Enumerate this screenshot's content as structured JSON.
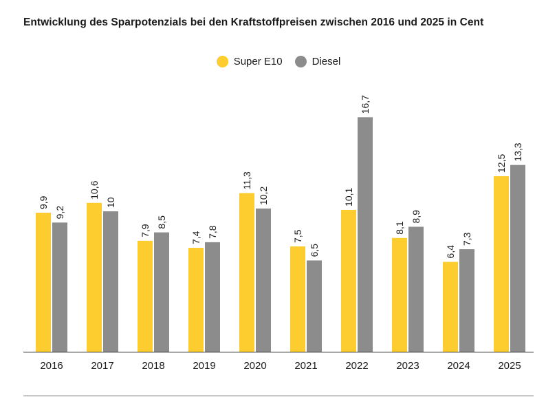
{
  "title": "Entwicklung des Sparpotenzials bei den Kraftstoffpreisen zwischen 2016 und 2025 in Cent",
  "legend": [
    {
      "label": "Super E10",
      "color": "#fdcd2f"
    },
    {
      "label": "Diesel",
      "color": "#8c8c8c"
    }
  ],
  "chart_data": {
    "type": "bar",
    "title": "Entwicklung des Sparpotenzials bei den Kraftstoffpreisen zwischen 2016 und 2025 in Cent",
    "xlabel": "",
    "ylabel": "",
    "categories": [
      "2016",
      "2017",
      "2018",
      "2019",
      "2020",
      "2021",
      "2022",
      "2023",
      "2024",
      "2025"
    ],
    "series": [
      {
        "name": "Super E10",
        "color": "#fdcd2f",
        "values": [
          9.9,
          10.6,
          7.9,
          7.4,
          11.3,
          7.5,
          10.1,
          8.1,
          6.4,
          12.5
        ],
        "labels": [
          "9,9",
          "10,6",
          "7,9",
          "7,4",
          "11,3",
          "7,5",
          "10,1",
          "8,1",
          "6,4",
          "12,5"
        ]
      },
      {
        "name": "Diesel",
        "color": "#8c8c8c",
        "values": [
          9.2,
          10,
          8.5,
          7.8,
          10.2,
          6.5,
          16.7,
          8.9,
          7.3,
          13.3
        ],
        "labels": [
          "9,2",
          "10",
          "8,5",
          "7,8",
          "10,2",
          "6,5",
          "16,7",
          "8,9",
          "7,3",
          "13,3"
        ]
      }
    ],
    "ylim": [
      0,
      16.7
    ],
    "grid": false,
    "legend_position": "top-center",
    "data_labels": "rotated-vertical"
  }
}
